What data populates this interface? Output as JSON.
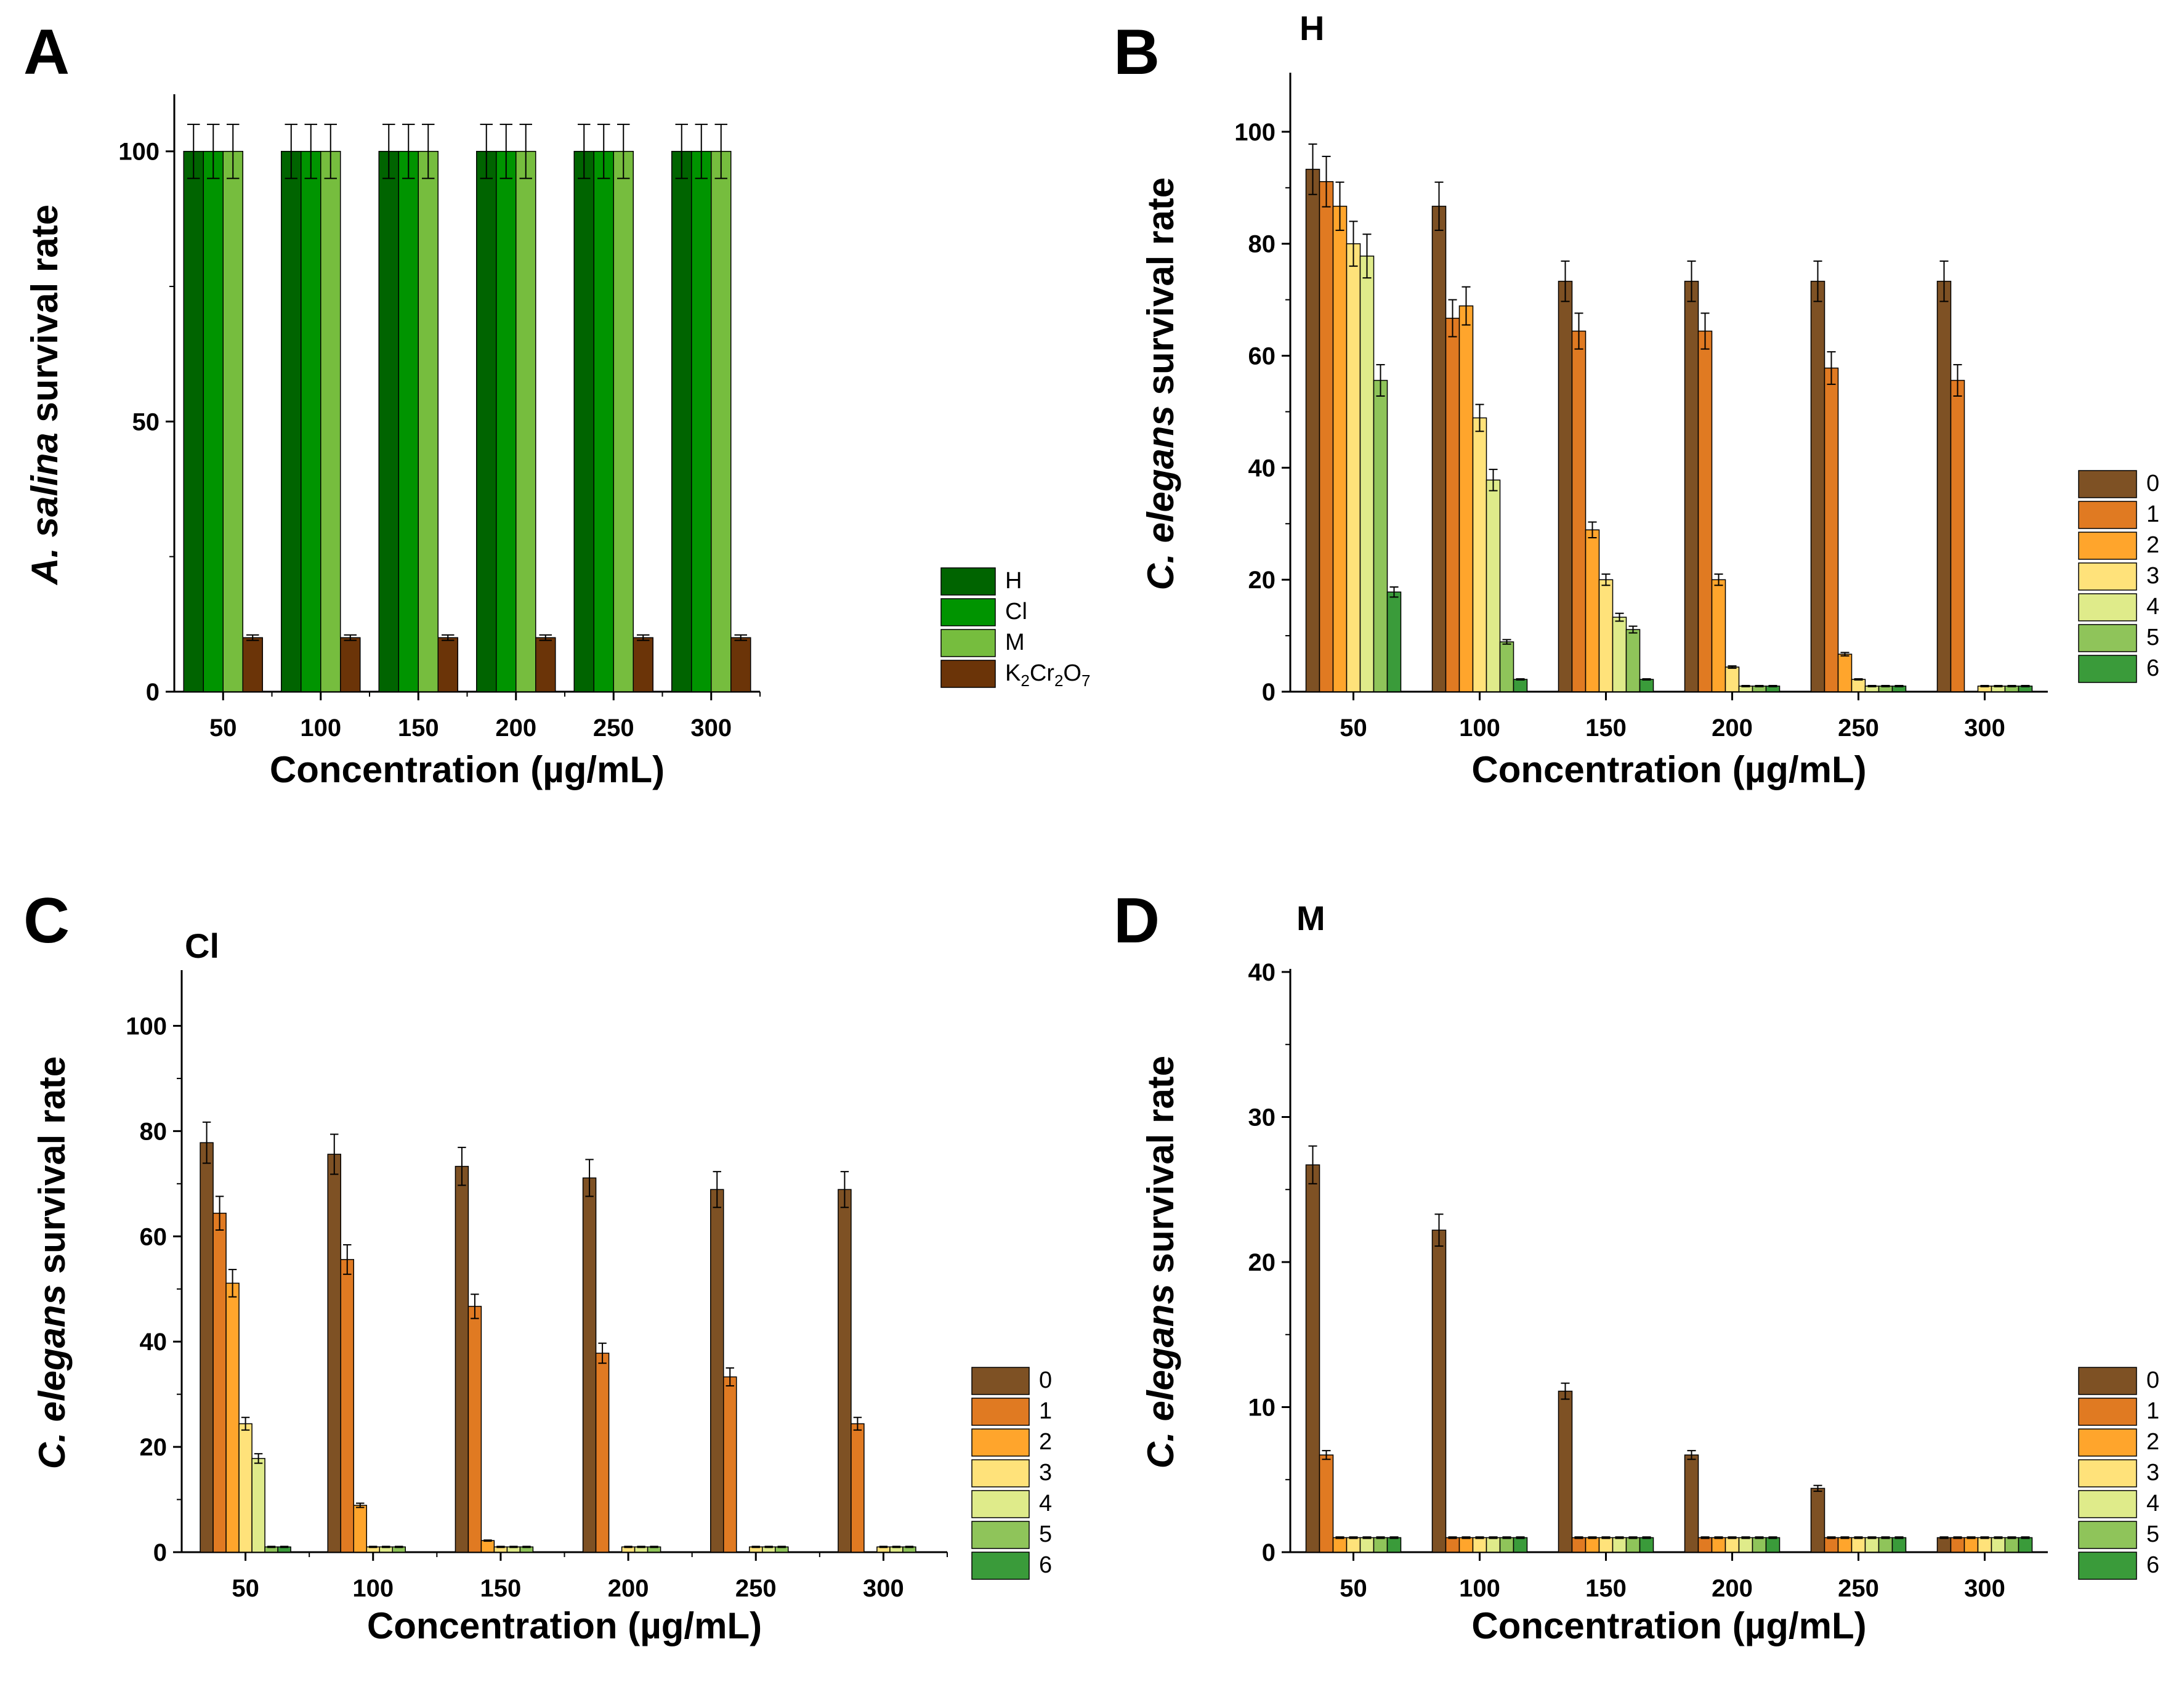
{
  "chart_data": [
    {
      "panel": "A",
      "type": "bar",
      "title": "",
      "xlabel": "Concentration (µg/mL)",
      "ylabel_italic": "A. salina",
      "ylabel_rest": " survival rate",
      "ylim": [
        0,
        110
      ],
      "yticks": [
        0,
        50,
        100
      ],
      "categories": [
        "50",
        "100",
        "150",
        "200",
        "250",
        "300"
      ],
      "series": [
        {
          "name": "H",
          "color": "#006400",
          "values": [
            100,
            100,
            100,
            100,
            100,
            100
          ],
          "errors": [
            5,
            5,
            5,
            5,
            5,
            5
          ]
        },
        {
          "name": "Cl",
          "color": "#009400",
          "values": [
            100,
            100,
            100,
            100,
            100,
            100
          ],
          "errors": [
            5,
            5,
            5,
            5,
            5,
            5
          ]
        },
        {
          "name": "M",
          "color": "#76bd3e",
          "values": [
            100,
            100,
            100,
            100,
            100,
            100
          ],
          "errors": [
            5,
            5,
            5,
            5,
            5,
            5
          ]
        },
        {
          "name": "K2Cr2O7",
          "color": "#6b3408",
          "values": [
            10,
            10,
            10,
            10,
            10,
            10
          ],
          "errors": [
            0.5,
            0.5,
            0.5,
            0.5,
            0.5,
            0.5
          ]
        }
      ]
    },
    {
      "panel": "B",
      "type": "bar",
      "title": "H",
      "xlabel": "Concentration (µg/mL)",
      "ylabel_italic": "C. elegans",
      "ylabel_rest": " survival rate",
      "ylim": [
        0,
        110
      ],
      "yticks": [
        0,
        20,
        40,
        60,
        80,
        100
      ],
      "categories": [
        "50",
        "100",
        "150",
        "200",
        "250",
        "300"
      ],
      "series": [
        {
          "name": "0",
          "color": "#7e5124",
          "values": [
            93.3,
            86.7,
            73.3,
            73.3,
            73.3,
            73.3
          ],
          "errors": [
            4.5,
            4.3,
            3.6,
            3.6,
            3.6,
            3.6
          ]
        },
        {
          "name": "1",
          "color": "#e07a22",
          "values": [
            91.1,
            66.7,
            64.4,
            64.4,
            57.8,
            55.6
          ],
          "errors": [
            4.5,
            3.3,
            3.2,
            3.2,
            2.9,
            2.8
          ]
        },
        {
          "name": "2",
          "color": "#ffa52c",
          "values": [
            86.7,
            68.9,
            28.9,
            20,
            6.7,
            0
          ],
          "errors": [
            4.3,
            3.4,
            1.4,
            1.0,
            0.3,
            0
          ]
        },
        {
          "name": "3",
          "color": "#ffe27a",
          "values": [
            80,
            48.9,
            20,
            4.4,
            2.2,
            1
          ],
          "errors": [
            4.0,
            2.4,
            1.0,
            0.2,
            0.1,
            0.1
          ]
        },
        {
          "name": "4",
          "color": "#dfeb8a",
          "values": [
            77.8,
            37.8,
            13.3,
            1,
            1,
            1
          ],
          "errors": [
            3.9,
            1.9,
            0.7,
            0.1,
            0.1,
            0.1
          ]
        },
        {
          "name": "5",
          "color": "#8fc45a",
          "values": [
            55.6,
            8.9,
            11.1,
            1,
            1,
            1
          ],
          "errors": [
            2.8,
            0.4,
            0.6,
            0.1,
            0.1,
            0.1
          ]
        },
        {
          "name": "6",
          "color": "#3a9b3a",
          "values": [
            17.8,
            2.2,
            2.2,
            1,
            1,
            1
          ],
          "errors": [
            0.9,
            0.1,
            0.1,
            0.1,
            0.1,
            0.1
          ]
        }
      ]
    },
    {
      "panel": "C",
      "type": "bar",
      "title": "Cl",
      "xlabel": "Concentration (µg/mL)",
      "ylabel_italic": "C. elegans",
      "ylabel_rest": " survival rate",
      "ylim": [
        0,
        110
      ],
      "yticks": [
        0,
        20,
        40,
        60,
        80,
        100
      ],
      "categories": [
        "50",
        "100",
        "150",
        "200",
        "250",
        "300"
      ],
      "series": [
        {
          "name": "0",
          "color": "#7e5124",
          "values": [
            77.8,
            75.6,
            73.3,
            71.1,
            68.9,
            68.9
          ],
          "errors": [
            3.9,
            3.8,
            3.6,
            3.5,
            3.4,
            3.4
          ]
        },
        {
          "name": "1",
          "color": "#e07a22",
          "values": [
            64.4,
            55.6,
            46.7,
            37.8,
            33.3,
            24.4
          ],
          "errors": [
            3.2,
            2.8,
            2.3,
            1.9,
            1.7,
            1.2
          ]
        },
        {
          "name": "2",
          "color": "#ffa52c",
          "values": [
            51.1,
            8.9,
            2.2,
            0,
            0,
            0
          ],
          "errors": [
            2.6,
            0.4,
            0.1,
            0,
            0,
            0
          ]
        },
        {
          "name": "3",
          "color": "#ffe27a",
          "values": [
            24.4,
            1,
            1,
            1,
            1,
            1
          ],
          "errors": [
            1.2,
            0.1,
            0.1,
            0.1,
            0.1,
            0.1
          ]
        },
        {
          "name": "4",
          "color": "#dfeb8a",
          "values": [
            17.8,
            1,
            1,
            1,
            1,
            1
          ],
          "errors": [
            0.9,
            0.1,
            0.1,
            0.1,
            0.1,
            0.1
          ]
        },
        {
          "name": "5",
          "color": "#8fc45a",
          "values": [
            1,
            1,
            1,
            1,
            1,
            1
          ],
          "errors": [
            0.1,
            0.1,
            0.1,
            0.1,
            0.1,
            0.1
          ]
        },
        {
          "name": "6",
          "color": "#3a9b3a",
          "values": [
            1,
            0,
            0,
            0,
            0,
            0
          ],
          "errors": [
            0.1,
            0,
            0,
            0,
            0,
            0
          ]
        }
      ]
    },
    {
      "panel": "D",
      "type": "bar",
      "title": "M",
      "xlabel": "Concentration (µg/mL)",
      "ylabel_italic": "C. elegans",
      "ylabel_rest": " survival rate",
      "ylim": [
        0,
        40
      ],
      "yticks": [
        0,
        10,
        20,
        30,
        40
      ],
      "categories": [
        "50",
        "100",
        "150",
        "200",
        "250",
        "300"
      ],
      "series": [
        {
          "name": "0",
          "color": "#7e5124",
          "values": [
            26.7,
            22.2,
            11.1,
            6.7,
            4.4,
            1
          ],
          "errors": [
            1.3,
            1.1,
            0.55,
            0.3,
            0.2,
            0.05
          ]
        },
        {
          "name": "1",
          "color": "#e07a22",
          "values": [
            6.7,
            1,
            1,
            1,
            1,
            1
          ],
          "errors": [
            0.3,
            0.05,
            0.05,
            0.05,
            0.05,
            0.05
          ]
        },
        {
          "name": "2",
          "color": "#ffa52c",
          "values": [
            1,
            1,
            1,
            1,
            1,
            1
          ],
          "errors": [
            0.05,
            0.05,
            0.05,
            0.05,
            0.05,
            0.05
          ]
        },
        {
          "name": "3",
          "color": "#ffe27a",
          "values": [
            1,
            1,
            1,
            1,
            1,
            1
          ],
          "errors": [
            0.05,
            0.05,
            0.05,
            0.05,
            0.05,
            0.05
          ]
        },
        {
          "name": "4",
          "color": "#dfeb8a",
          "values": [
            1,
            1,
            1,
            1,
            1,
            1
          ],
          "errors": [
            0.05,
            0.05,
            0.05,
            0.05,
            0.05,
            0.05
          ]
        },
        {
          "name": "5",
          "color": "#8fc45a",
          "values": [
            1,
            1,
            1,
            1,
            1,
            1
          ],
          "errors": [
            0.05,
            0.05,
            0.05,
            0.05,
            0.05,
            0.05
          ]
        },
        {
          "name": "6",
          "color": "#3a9b3a",
          "values": [
            1,
            1,
            1,
            1,
            1,
            1
          ],
          "errors": [
            0.05,
            0.05,
            0.05,
            0.05,
            0.05,
            0.05
          ]
        }
      ]
    }
  ]
}
